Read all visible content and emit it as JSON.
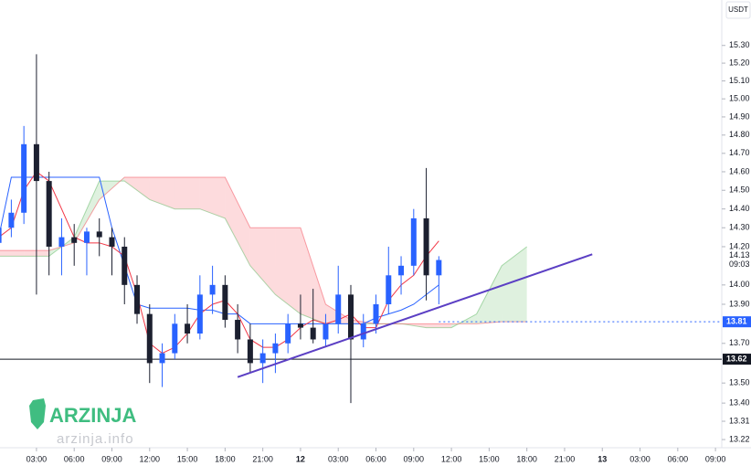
{
  "chart_data": {
    "type": "candlestick",
    "currency": "USDT",
    "log_scale": true,
    "ylim": [
      13.18,
      15.56
    ],
    "yticks": [
      {
        "value": 15.3,
        "label": "15.30"
      },
      {
        "value": 15.2,
        "label": "15.20"
      },
      {
        "value": 15.1,
        "label": "15.10"
      },
      {
        "value": 15.0,
        "label": "15.00"
      },
      {
        "value": 14.9,
        "label": "14.90"
      },
      {
        "value": 14.8,
        "label": "14.80"
      },
      {
        "value": 14.7,
        "label": "14.70"
      },
      {
        "value": 14.6,
        "label": "14.60"
      },
      {
        "value": 14.5,
        "label": "14.50"
      },
      {
        "value": 14.4,
        "label": "14.40"
      },
      {
        "value": 14.3,
        "label": "14.30"
      },
      {
        "value": 14.2,
        "label": "14.20"
      },
      {
        "value": 14.0,
        "label": "14.00"
      },
      {
        "value": 13.9,
        "label": "13.90"
      },
      {
        "value": 13.7,
        "label": "13.70"
      },
      {
        "value": 13.5,
        "label": "13.50"
      },
      {
        "value": 13.4,
        "label": "13.40"
      },
      13.31,
      13.22
    ],
    "xlim": [
      0.1,
      57.5
    ],
    "xticks": [
      {
        "value": 3,
        "label": "03:00"
      },
      {
        "value": 6,
        "label": "06:00"
      },
      {
        "value": 9,
        "label": "09:00"
      },
      {
        "value": 12,
        "label": "12:00"
      },
      {
        "value": 15,
        "label": "15:00"
      },
      {
        "value": 18,
        "label": "18:00"
      },
      {
        "value": 21,
        "label": "21:00"
      },
      {
        "value": 24,
        "label": "12"
      },
      {
        "value": 27,
        "label": "03:00"
      },
      {
        "value": 30,
        "label": "06:00"
      },
      {
        "value": 33,
        "label": "09:00"
      },
      {
        "value": 36,
        "label": "12:00"
      },
      {
        "value": 39,
        "label": "15:00"
      },
      {
        "value": 42,
        "label": "18:00"
      },
      {
        "value": 45,
        "label": "21:00"
      },
      {
        "value": 48,
        "label": "13"
      },
      {
        "value": 51,
        "label": "03:00"
      },
      {
        "value": 54,
        "label": "06:00"
      },
      {
        "value": 57,
        "label": "09:00"
      }
    ],
    "up_color": "#2962ff",
    "down_color": "#1c2030",
    "x": [
      0,
      1,
      2,
      3,
      4,
      5,
      6,
      7,
      8,
      9,
      10,
      11,
      12,
      13,
      14,
      15,
      16,
      17,
      18,
      19,
      20,
      21,
      22,
      23,
      24,
      25,
      26,
      27,
      28,
      29,
      30,
      31,
      32,
      33,
      34,
      35
    ],
    "ohlc": [
      [
        14.22,
        14.35,
        14.18,
        14.3
      ],
      [
        14.3,
        14.45,
        14.25,
        14.38
      ],
      [
        14.38,
        14.85,
        14.32,
        14.75
      ],
      [
        14.75,
        15.25,
        13.95,
        14.55
      ],
      [
        14.55,
        14.6,
        14.05,
        14.2
      ],
      [
        14.2,
        14.35,
        14.05,
        14.25
      ],
      [
        14.25,
        14.32,
        14.1,
        14.22
      ],
      [
        14.22,
        14.3,
        14.05,
        14.28
      ],
      [
        14.28,
        14.35,
        14.15,
        14.25
      ],
      [
        14.25,
        14.3,
        14.05,
        14.2
      ],
      [
        14.2,
        14.25,
        13.9,
        14.0
      ],
      [
        14.0,
        14.05,
        13.8,
        13.85
      ],
      [
        13.85,
        13.9,
        13.5,
        13.6
      ],
      [
        13.6,
        13.7,
        13.48,
        13.65
      ],
      [
        13.65,
        13.85,
        13.62,
        13.8
      ],
      [
        13.8,
        13.9,
        13.7,
        13.75
      ],
      [
        13.75,
        14.05,
        13.72,
        13.95
      ],
      [
        13.95,
        14.1,
        13.85,
        14.0
      ],
      [
        14.0,
        14.05,
        13.78,
        13.82
      ],
      [
        13.82,
        13.9,
        13.65,
        13.72
      ],
      [
        13.72,
        13.8,
        13.55,
        13.6
      ],
      [
        13.6,
        13.72,
        13.5,
        13.65
      ],
      [
        13.65,
        13.75,
        13.55,
        13.7
      ],
      [
        13.7,
        13.85,
        13.65,
        13.8
      ],
      [
        13.8,
        13.95,
        13.72,
        13.78
      ],
      [
        13.78,
        13.98,
        13.7,
        13.72
      ],
      [
        13.72,
        13.85,
        13.68,
        13.8
      ],
      [
        13.8,
        14.1,
        13.75,
        13.95
      ],
      [
        13.95,
        14.0,
        13.4,
        13.72
      ],
      [
        13.72,
        13.85,
        13.68,
        13.8
      ],
      [
        13.8,
        13.95,
        13.75,
        13.9
      ],
      [
        13.9,
        14.2,
        13.85,
        14.05
      ],
      [
        14.05,
        14.15,
        13.95,
        14.1
      ],
      [
        14.1,
        14.4,
        14.05,
        14.35
      ],
      [
        14.35,
        14.62,
        13.92,
        14.05
      ],
      [
        14.05,
        14.15,
        13.9,
        14.13
      ]
    ],
    "lines": [
      {
        "color": "#2962ff",
        "values": [
          14.25,
          14.57,
          14.57,
          14.57,
          14.57,
          14.57,
          14.57,
          14.57,
          14.57,
          14.3,
          14.1,
          13.9,
          13.88,
          13.88,
          13.88,
          13.88,
          13.87,
          13.87,
          13.85,
          13.85,
          13.8,
          13.8,
          13.8,
          13.8,
          13.8,
          13.8,
          13.8,
          13.8,
          13.8,
          13.8,
          13.83,
          13.85,
          13.87,
          13.9,
          13.95,
          14.0
        ]
      },
      {
        "color": "#f23645",
        "values": [
          14.25,
          14.3,
          14.5,
          14.6,
          14.55,
          14.4,
          14.25,
          14.22,
          14.22,
          14.2,
          14.15,
          13.95,
          13.7,
          13.65,
          13.68,
          13.75,
          13.85,
          13.9,
          13.92,
          13.85,
          13.72,
          13.68,
          13.68,
          13.72,
          13.78,
          13.82,
          13.8,
          13.82,
          13.85,
          13.78,
          13.78,
          13.92,
          14.0,
          14.05,
          14.15,
          14.23
        ]
      }
    ],
    "cloud": {
      "x": [
        0,
        2,
        4,
        6,
        8,
        10,
        12,
        14,
        16,
        18,
        20,
        22,
        24,
        26,
        28,
        30,
        32,
        34,
        36,
        38,
        40,
        42
      ],
      "span_a": [
        14.15,
        14.15,
        14.15,
        14.25,
        14.55,
        14.55,
        14.45,
        14.4,
        14.4,
        14.35,
        14.1,
        13.95,
        13.85,
        13.8,
        13.8,
        13.8,
        13.8,
        13.78,
        13.78,
        13.85,
        14.1,
        14.2
      ],
      "span_b": [
        14.18,
        14.18,
        14.18,
        14.22,
        14.45,
        14.57,
        14.57,
        14.57,
        14.57,
        14.57,
        14.3,
        14.3,
        14.3,
        13.9,
        13.82,
        13.8,
        13.8,
        13.8,
        13.8,
        13.8,
        13.81,
        13.81
      ],
      "up_color": "#4caf50",
      "down_color": "#f23645"
    },
    "trendline": {
      "x": [
        19,
        47.2
      ],
      "values": [
        13.53,
        14.16
      ],
      "color": "#5b3fc4"
    },
    "price_lines": [
      {
        "value": 13.81,
        "color": "#2962ff",
        "style": "dotted"
      },
      {
        "value": 13.62,
        "color": "#131722",
        "style": "solid"
      }
    ],
    "last_price": {
      "value": 14.13,
      "countdown": "09:03"
    },
    "watermark": {
      "brand": "ARZINJA",
      "site": "arzinja.info"
    }
  }
}
